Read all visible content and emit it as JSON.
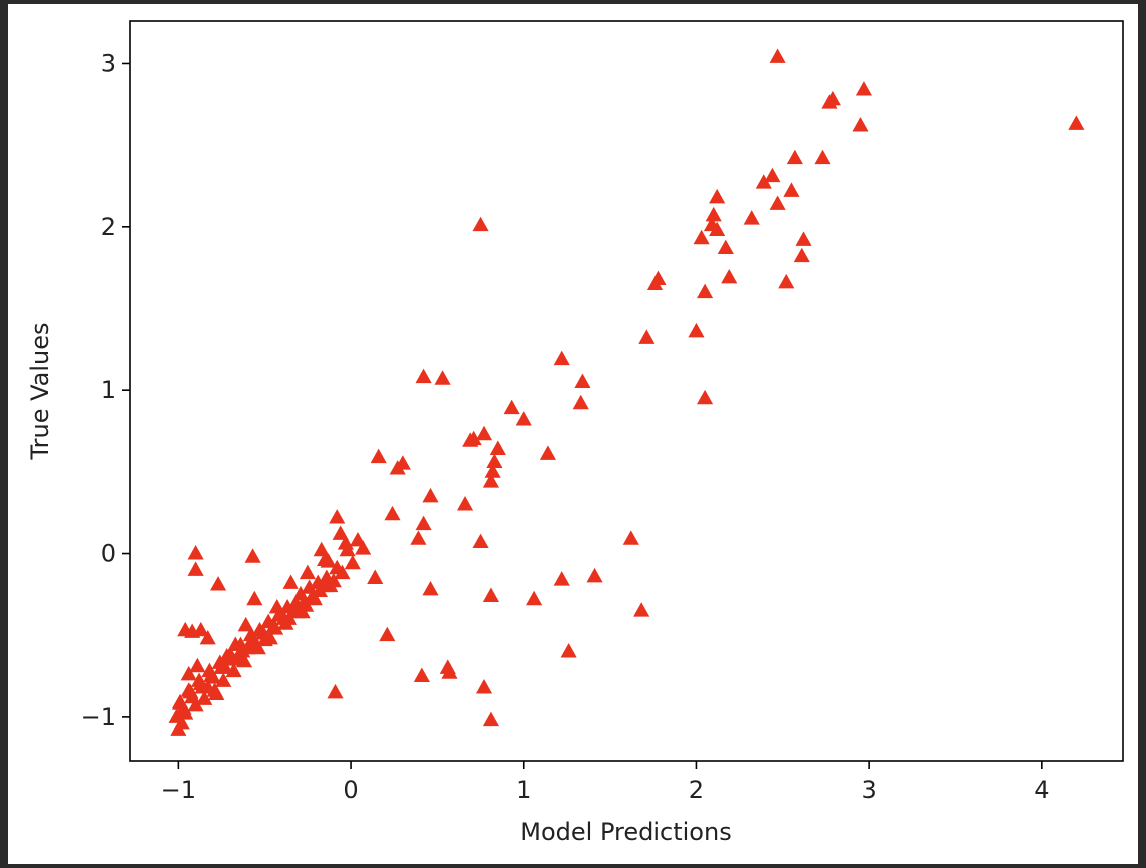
{
  "chart_data": {
    "type": "scatter",
    "title": "",
    "xlabel": "Model Predictions",
    "ylabel": "True Values",
    "xlim": [
      -1.28,
      4.47
    ],
    "ylim": [
      -1.27,
      3.26
    ],
    "xticks": [
      -1,
      0,
      1,
      2,
      3,
      4
    ],
    "yticks": [
      -1,
      0,
      1,
      2,
      3
    ],
    "xtick_labels": [
      "−1",
      "0",
      "1",
      "2",
      "3",
      "4"
    ],
    "ytick_labels": [
      "−1",
      "0",
      "1",
      "2",
      "3"
    ],
    "grid": false,
    "legend": false,
    "marker": "triangle-up",
    "marker_color": "#e8321e",
    "series": [
      {
        "x": [
          2.47,
          2.97,
          2.95,
          2.79,
          2.77,
          4.2,
          2.73,
          2.57,
          2.44,
          2.39,
          2.12,
          2.1,
          2.55,
          2.47,
          2.09,
          2.12,
          2.32,
          2.03,
          2.62,
          2.17,
          2.61,
          2.19,
          2.52,
          1.78,
          1.76,
          2.05,
          1.71,
          2.0,
          0.75,
          1.22,
          1.34,
          1.33,
          2.05,
          0.93,
          1.0,
          0.42,
          0.53,
          0.77,
          0.71,
          0.69,
          0.85,
          0.83,
          0.82,
          0.81,
          1.14,
          0.16,
          0.3,
          0.27,
          0.46,
          0.66,
          0.42,
          0.39,
          0.24,
          0.75,
          1.62,
          1.41,
          1.22,
          0.46,
          0.81,
          1.06,
          1.68,
          0.21,
          1.26,
          0.56,
          0.57,
          0.41,
          0.77,
          0.81,
          -0.08,
          -0.06,
          -0.17,
          -0.03,
          0.04,
          0.07,
          -0.13,
          -0.08,
          -0.14,
          -0.19,
          -0.24,
          -0.29,
          -0.32,
          -0.37,
          -0.42,
          -0.48,
          -0.53,
          -0.58,
          -0.64,
          -0.7,
          -0.76,
          -0.82,
          -0.88,
          -0.94,
          -0.99,
          -0.05,
          -0.1,
          -0.16,
          -0.22,
          -0.27,
          -0.33,
          -0.39,
          -0.45,
          -0.51,
          -0.57,
          -0.63,
          -0.69,
          -0.75,
          -0.81,
          -0.87,
          -0.93,
          0.01,
          -0.21,
          -0.28,
          -0.36,
          -0.44,
          -0.5,
          -0.55,
          -0.6,
          -0.66,
          -0.73,
          -0.8,
          -0.86,
          -0.92,
          -0.97,
          -1.01,
          -0.02,
          -0.12,
          -0.18,
          -0.26,
          -0.31,
          -0.38,
          -0.47,
          -0.54,
          -0.62,
          -0.68,
          -0.74,
          -0.79,
          -0.85,
          -0.9,
          -0.96,
          -0.87,
          -0.92,
          -0.83,
          -0.57,
          -0.77,
          -0.09,
          -0.9,
          -0.9,
          -0.96,
          -0.99,
          -1.0,
          -0.98,
          -0.94,
          -0.89,
          -0.83,
          -0.78,
          -0.72,
          -0.67,
          -0.61,
          -0.56,
          -0.43,
          -0.35,
          -0.25,
          -0.15,
          0.14
        ],
        "y": [
          3.04,
          2.84,
          2.62,
          2.78,
          2.76,
          2.63,
          2.42,
          2.42,
          2.31,
          2.27,
          2.18,
          2.07,
          2.22,
          2.14,
          2.01,
          1.98,
          2.05,
          1.93,
          1.92,
          1.87,
          1.82,
          1.69,
          1.66,
          1.68,
          1.65,
          1.6,
          1.32,
          1.36,
          2.01,
          1.19,
          1.05,
          0.92,
          0.95,
          0.89,
          0.82,
          1.08,
          1.07,
          0.73,
          0.7,
          0.69,
          0.64,
          0.56,
          0.5,
          0.44,
          0.61,
          0.59,
          0.55,
          0.52,
          0.35,
          0.3,
          0.18,
          0.09,
          0.24,
          0.07,
          0.09,
          -0.14,
          -0.16,
          -0.22,
          -0.26,
          -0.28,
          -0.35,
          -0.5,
          -0.6,
          -0.7,
          -0.73,
          -0.75,
          -0.82,
          -1.02,
          0.22,
          0.12,
          0.02,
          0.06,
          0.08,
          0.03,
          -0.05,
          -0.09,
          -0.15,
          -0.18,
          -0.21,
          -0.25,
          -0.3,
          -0.33,
          -0.38,
          -0.42,
          -0.47,
          -0.5,
          -0.56,
          -0.62,
          -0.67,
          -0.72,
          -0.78,
          -0.84,
          -0.92,
          -0.12,
          -0.17,
          -0.2,
          -0.26,
          -0.3,
          -0.35,
          -0.4,
          -0.45,
          -0.49,
          -0.54,
          -0.6,
          -0.65,
          -0.7,
          -0.75,
          -0.8,
          -0.85,
          -0.06,
          -0.28,
          -0.36,
          -0.4,
          -0.46,
          -0.53,
          -0.57,
          -0.58,
          -0.64,
          -0.7,
          -0.76,
          -0.82,
          -0.88,
          -0.95,
          -1.0,
          0.02,
          -0.2,
          -0.23,
          -0.32,
          -0.36,
          -0.43,
          -0.52,
          -0.58,
          -0.66,
          -0.72,
          -0.78,
          -0.84,
          -0.89,
          -0.93,
          -0.98,
          -0.47,
          -0.48,
          -0.52,
          -0.02,
          -0.19,
          -0.85,
          0.0,
          -0.1,
          -0.47,
          -0.91,
          -1.08,
          -1.04,
          -0.74,
          -0.69,
          -0.82,
          -0.86,
          -0.63,
          -0.56,
          -0.44,
          -0.28,
          -0.33,
          -0.18,
          -0.12,
          -0.04,
          -0.15
        ]
      }
    ]
  }
}
